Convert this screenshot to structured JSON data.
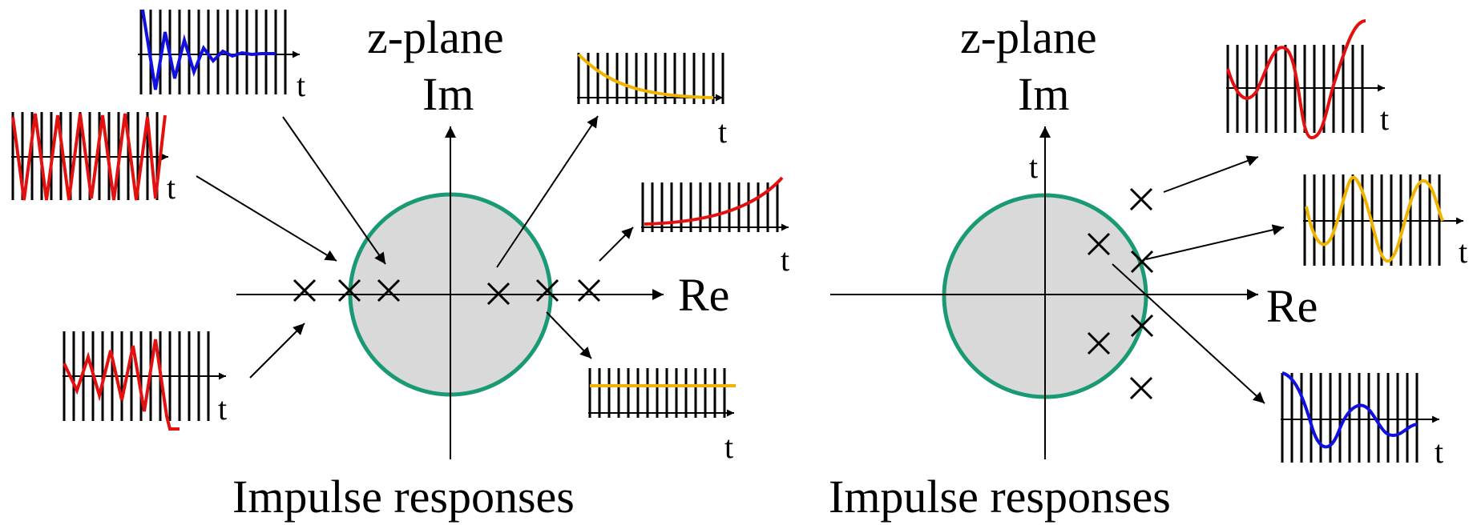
{
  "left": {
    "title": "z-plane",
    "im_label": "Im",
    "re_label": "Re",
    "caption": "Impulse responses",
    "t_label": "t"
  },
  "right": {
    "title": "z-plane",
    "im_label": "Im",
    "re_label": "Re",
    "caption": "Impulse responses",
    "t_label": "t",
    "axis_top_label": "t"
  },
  "colors": {
    "circle_fill": "#d9d9d9",
    "circle_stroke": "#1a9a74",
    "red": "#e31010",
    "blue": "#1010e0",
    "yellow": "#f0b400",
    "ink": "#000000"
  },
  "pole_marker": "×"
}
